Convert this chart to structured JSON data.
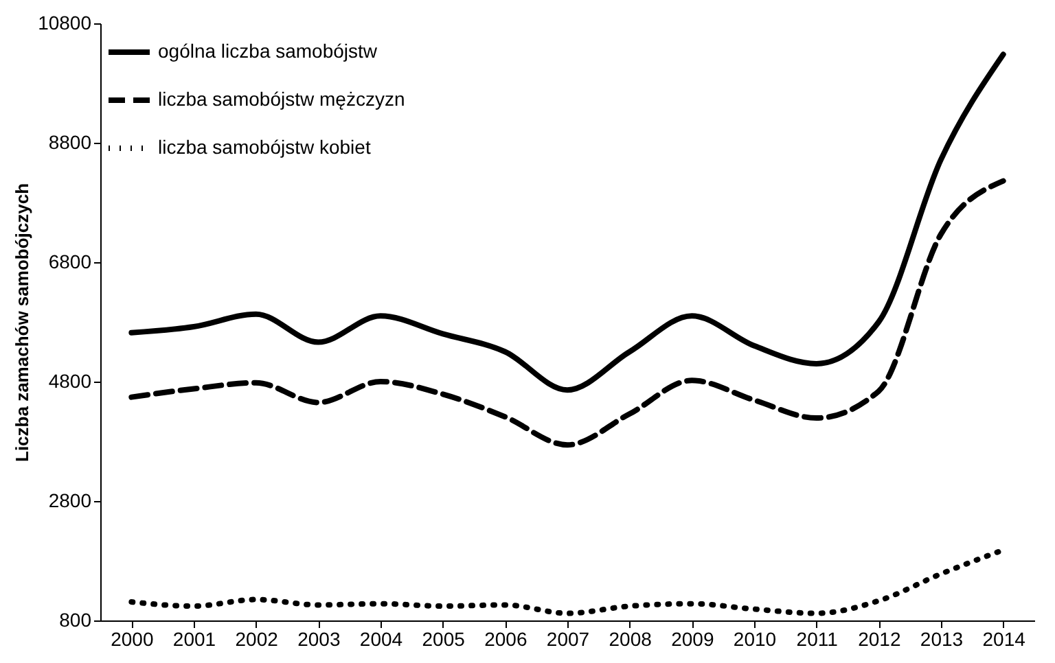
{
  "chart_data": {
    "type": "line",
    "ylabel": "Liczba zamachów samobójczych",
    "categories": [
      "2000",
      "2001",
      "2002",
      "2003",
      "2004",
      "2005",
      "2006",
      "2007",
      "2008",
      "2009",
      "2010",
      "2011",
      "2012",
      "2013",
      "2014"
    ],
    "ylim": [
      800,
      10800
    ],
    "yticks": [
      800,
      2800,
      4800,
      6800,
      8800,
      10800
    ],
    "grid": false,
    "legend": "top left",
    "marker": "none",
    "series": [
      {
        "name": "ogólna liczba samobójstw",
        "color": "#000000",
        "line_style": "solid",
        "values": [
          5620,
          5720,
          5930,
          5460,
          5900,
          5600,
          5300,
          4660,
          5300,
          5900,
          5400,
          5100,
          5800,
          8520,
          10280
        ]
      },
      {
        "name": "liczba samobójstw mężczyzn",
        "color": "#000000",
        "line_style": "dashed",
        "values": [
          4540,
          4680,
          4780,
          4450,
          4800,
          4590,
          4210,
          3740,
          4260,
          4820,
          4490,
          4190,
          4640,
          7270,
          8160
        ]
      },
      {
        "name": "liczba samobójstw kobiet",
        "color": "#000000",
        "line_style": "dotted",
        "values": [
          1110,
          1040,
          1150,
          1060,
          1080,
          1040,
          1060,
          920,
          1040,
          1080,
          990,
          920,
          1130,
          1580,
          1980
        ]
      }
    ]
  }
}
